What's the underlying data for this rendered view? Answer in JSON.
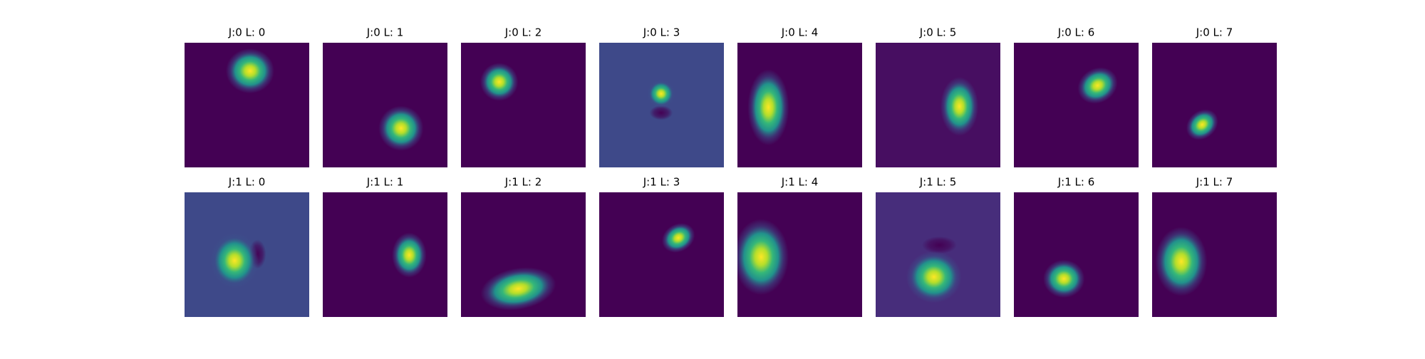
{
  "panels": [
    {
      "title": "J:0 L: 0"
    },
    {
      "title": "J:0 L: 1"
    },
    {
      "title": "J:0 L: 2"
    },
    {
      "title": "J:0 L: 3"
    },
    {
      "title": "J:0 L: 4"
    },
    {
      "title": "J:0 L: 5"
    },
    {
      "title": "J:0 L: 6"
    },
    {
      "title": "J:0 L: 7"
    },
    {
      "title": "J:1 L: 0"
    },
    {
      "title": "J:1 L: 1"
    },
    {
      "title": "J:1 L: 2"
    },
    {
      "title": "J:1 L: 3"
    },
    {
      "title": "J:1 L: 4"
    },
    {
      "title": "J:1 L: 5"
    },
    {
      "title": "J:1 L: 6"
    },
    {
      "title": "J:1 L: 7"
    }
  ]
}
